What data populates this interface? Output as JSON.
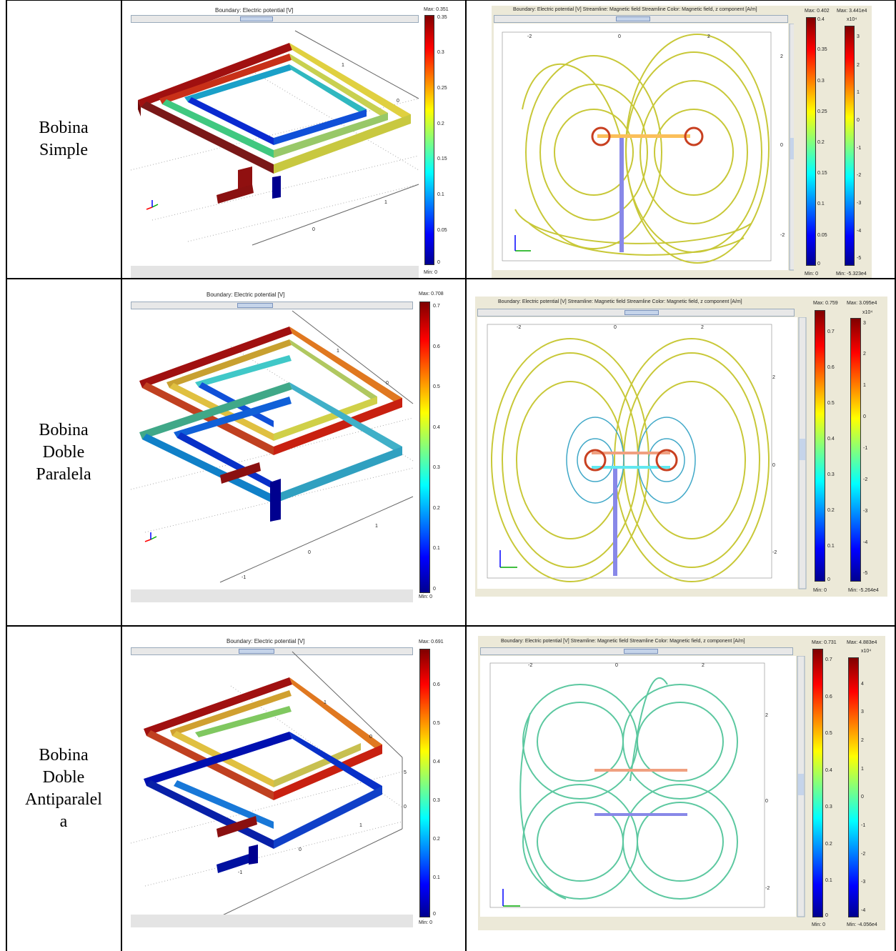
{
  "rows": [
    {
      "label_lines": [
        "Bobina",
        "Simple"
      ],
      "left": {
        "title": "Boundary: Electric potential [V]",
        "max_label": "Max: 0.351",
        "min_label": "Min: 0",
        "ticks": [
          "0.35",
          "0.3",
          "0.25",
          "0.2",
          "0.15",
          "0.1",
          "0.05",
          "0"
        ],
        "axis_labels": [
          "1",
          "0",
          "1",
          "0"
        ]
      },
      "right": {
        "title": "Boundary: Electric potential [V]   Streamline: Magnetic field   Streamline Color: Magnetic field, z component [A/m]",
        "max1": "Max: 0.402",
        "max2": "Max: 3.441e4",
        "min1": "Min: 0",
        "min2": "Min: -5.323e4",
        "exp": "x10⁴",
        "ticks1": [
          "0.4",
          "0.35",
          "0.3",
          "0.25",
          "0.2",
          "0.15",
          "0.1",
          "0.05",
          "0"
        ],
        "ticks2": [
          "3",
          "2",
          "1",
          "0",
          "-1",
          "-2",
          "-3",
          "-4",
          "-5"
        ],
        "top_ticks": [
          "-2",
          "0",
          "2"
        ],
        "side_ticks": [
          "2",
          "0",
          "-2"
        ]
      }
    },
    {
      "label_lines": [
        "Bobina",
        "Doble",
        "Paralela"
      ],
      "left": {
        "title": "Boundary: Electric potential [V]",
        "max_label": "Max: 0.708",
        "min_label": "Min: 0",
        "ticks": [
          "0.7",
          "0.6",
          "0.5",
          "0.4",
          "0.3",
          "0.2",
          "0.1",
          "0"
        ],
        "axis_labels": [
          "1",
          "0",
          "1",
          "0",
          "-1"
        ]
      },
      "right": {
        "title": "Boundary: Electric potential [V]   Streamline: Magnetic field   Streamline Color: Magnetic field, z component [A/m]",
        "max1": "Max: 0.759",
        "max2": "Max: 3.095e4",
        "min1": "Min: 0",
        "min2": "Min: -5.264e4",
        "exp": "x10⁴",
        "ticks1": [
          "0.7",
          "0.6",
          "0.5",
          "0.4",
          "0.3",
          "0.2",
          "0.1",
          "0"
        ],
        "ticks2": [
          "3",
          "2",
          "1",
          "0",
          "-1",
          "-2",
          "-3",
          "-4",
          "-5"
        ],
        "top_ticks": [
          "-2",
          "0",
          "2"
        ],
        "side_ticks": [
          "2",
          "0",
          "-2"
        ]
      }
    },
    {
      "label_lines": [
        "Bobina",
        "Doble",
        "Antiparalel",
        "a"
      ],
      "left": {
        "title": "Boundary: Electric potential [V]",
        "max_label": "Max: 0.691",
        "min_label": "Min: 0",
        "ticks": [
          "0.6",
          "0.5",
          "0.4",
          "0.3",
          "0.2",
          "0.1",
          "0"
        ],
        "axis_labels": [
          "1",
          "0",
          "1",
          "0",
          "-1",
          "5",
          "0"
        ]
      },
      "right": {
        "title": "Boundary: Electric potential [V]   Streamline: Magnetic field   Streamline Color: Magnetic field, z component [A/m]",
        "max1": "Max: 0.731",
        "max2": "Max: 4.883e4",
        "min1": "Min: 0",
        "min2": "Min: -4.056e4",
        "exp": "x10⁴",
        "ticks1": [
          "0.7",
          "0.6",
          "0.5",
          "0.4",
          "0.3",
          "0.2",
          "0.1",
          "0"
        ],
        "ticks2": [
          "4",
          "3",
          "2",
          "1",
          "0",
          "-1",
          "-2",
          "-3",
          "-4"
        ],
        "top_ticks": [
          "-2",
          "0",
          "2"
        ],
        "side_ticks": [
          "2",
          "0",
          "-2"
        ]
      }
    }
  ],
  "colors": {
    "jet_top": "#800000",
    "jet_bottom": "#00008f",
    "streamline_yellow": "#d8d84a",
    "streamline_green": "#5cc8a0"
  }
}
